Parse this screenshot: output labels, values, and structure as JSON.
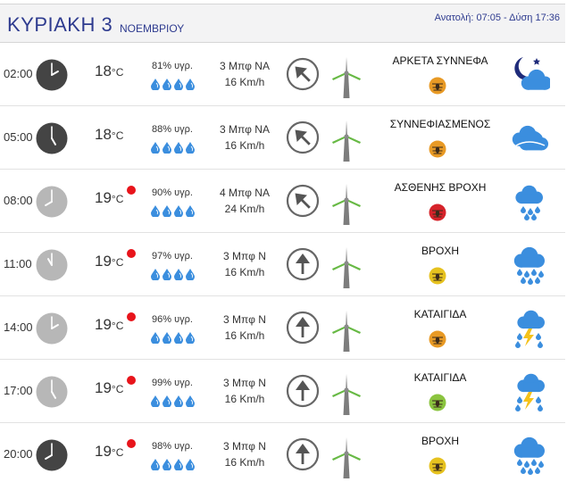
{
  "header": {
    "day": "ΚΥΡΙΑΚΗ 3",
    "month": "ΝΟΕΜΒΡΙΟΥ",
    "sun": "Ανατολή: 07:05 - Δύση 17:36"
  },
  "colors": {
    "header_text": "#2e3b8f",
    "clock_dark": "#444444",
    "clock_light": "#b7b7b7",
    "rain_dot": "#e8141b",
    "drop": "#3b8ede",
    "weather_icon": "#3b8ede"
  },
  "rows": [
    {
      "time": "02:00",
      "clock": "dark",
      "hour": 2,
      "temp": "18",
      "unit": "°C",
      "rain_dot": false,
      "humidity": "81% υγρ.",
      "drops": 4,
      "wind_beaufort": "3 Μπφ ΝΑ",
      "wind_kmh": "16 Km/h",
      "wind_dir": "NA",
      "condition": "ΑΡΚΕΤΑ ΣΥΝΝΕΦΑ",
      "badge_color": "#e89a25",
      "weather_icon": "night-cloudy-icon"
    },
    {
      "time": "05:00",
      "clock": "dark",
      "hour": 5,
      "temp": "18",
      "unit": "°C",
      "rain_dot": false,
      "humidity": "88% υγρ.",
      "drops": 4,
      "wind_beaufort": "3 Μπφ ΝΑ",
      "wind_kmh": "16 Km/h",
      "wind_dir": "NA",
      "condition": "ΣΥΝΝΕΦΙΑΣΜΕΝΟΣ",
      "badge_color": "#e89a25",
      "weather_icon": "cloudy-icon"
    },
    {
      "time": "08:00",
      "clock": "light",
      "hour": 8,
      "temp": "19",
      "unit": "°C",
      "rain_dot": true,
      "humidity": "90% υγρ.",
      "drops": 4,
      "wind_beaufort": "4 Μπφ ΝΑ",
      "wind_kmh": "24 Km/h",
      "wind_dir": "NA",
      "condition": "ΑΣΘΕΝΗΣ ΒΡΟΧΗ",
      "badge_color": "#d6232a",
      "weather_icon": "light-rain-icon"
    },
    {
      "time": "11:00",
      "clock": "light",
      "hour": 11,
      "temp": "19",
      "unit": "°C",
      "rain_dot": true,
      "humidity": "97% υγρ.",
      "drops": 4,
      "wind_beaufort": "3 Μπφ Ν",
      "wind_kmh": "16 Km/h",
      "wind_dir": "N",
      "condition": "ΒΡΟΧΗ",
      "badge_color": "#e6c21f",
      "weather_icon": "rain-icon"
    },
    {
      "time": "14:00",
      "clock": "light",
      "hour": 14,
      "temp": "19",
      "unit": "°C",
      "rain_dot": true,
      "humidity": "96% υγρ.",
      "drops": 4,
      "wind_beaufort": "3 Μπφ Ν",
      "wind_kmh": "16 Km/h",
      "wind_dir": "N",
      "condition": "ΚΑΤΑΙΓΙΔΑ",
      "badge_color": "#e89a25",
      "weather_icon": "thunderstorm-icon"
    },
    {
      "time": "17:00",
      "clock": "light",
      "hour": 17,
      "temp": "19",
      "unit": "°C",
      "rain_dot": true,
      "humidity": "99% υγρ.",
      "drops": 4,
      "wind_beaufort": "3 Μπφ Ν",
      "wind_kmh": "16 Km/h",
      "wind_dir": "N",
      "condition": "ΚΑΤΑΙΓΙΔΑ",
      "badge_color": "#8bc43f",
      "weather_icon": "thunderstorm-icon"
    },
    {
      "time": "20:00",
      "clock": "dark",
      "hour": 20,
      "temp": "19",
      "unit": "°C",
      "rain_dot": true,
      "humidity": "98% υγρ.",
      "drops": 4,
      "wind_beaufort": "3 Μπφ Ν",
      "wind_kmh": "16 Km/h",
      "wind_dir": "N",
      "condition": "ΒΡΟΧΗ",
      "badge_color": "#e6c21f",
      "weather_icon": "rain-icon"
    }
  ]
}
